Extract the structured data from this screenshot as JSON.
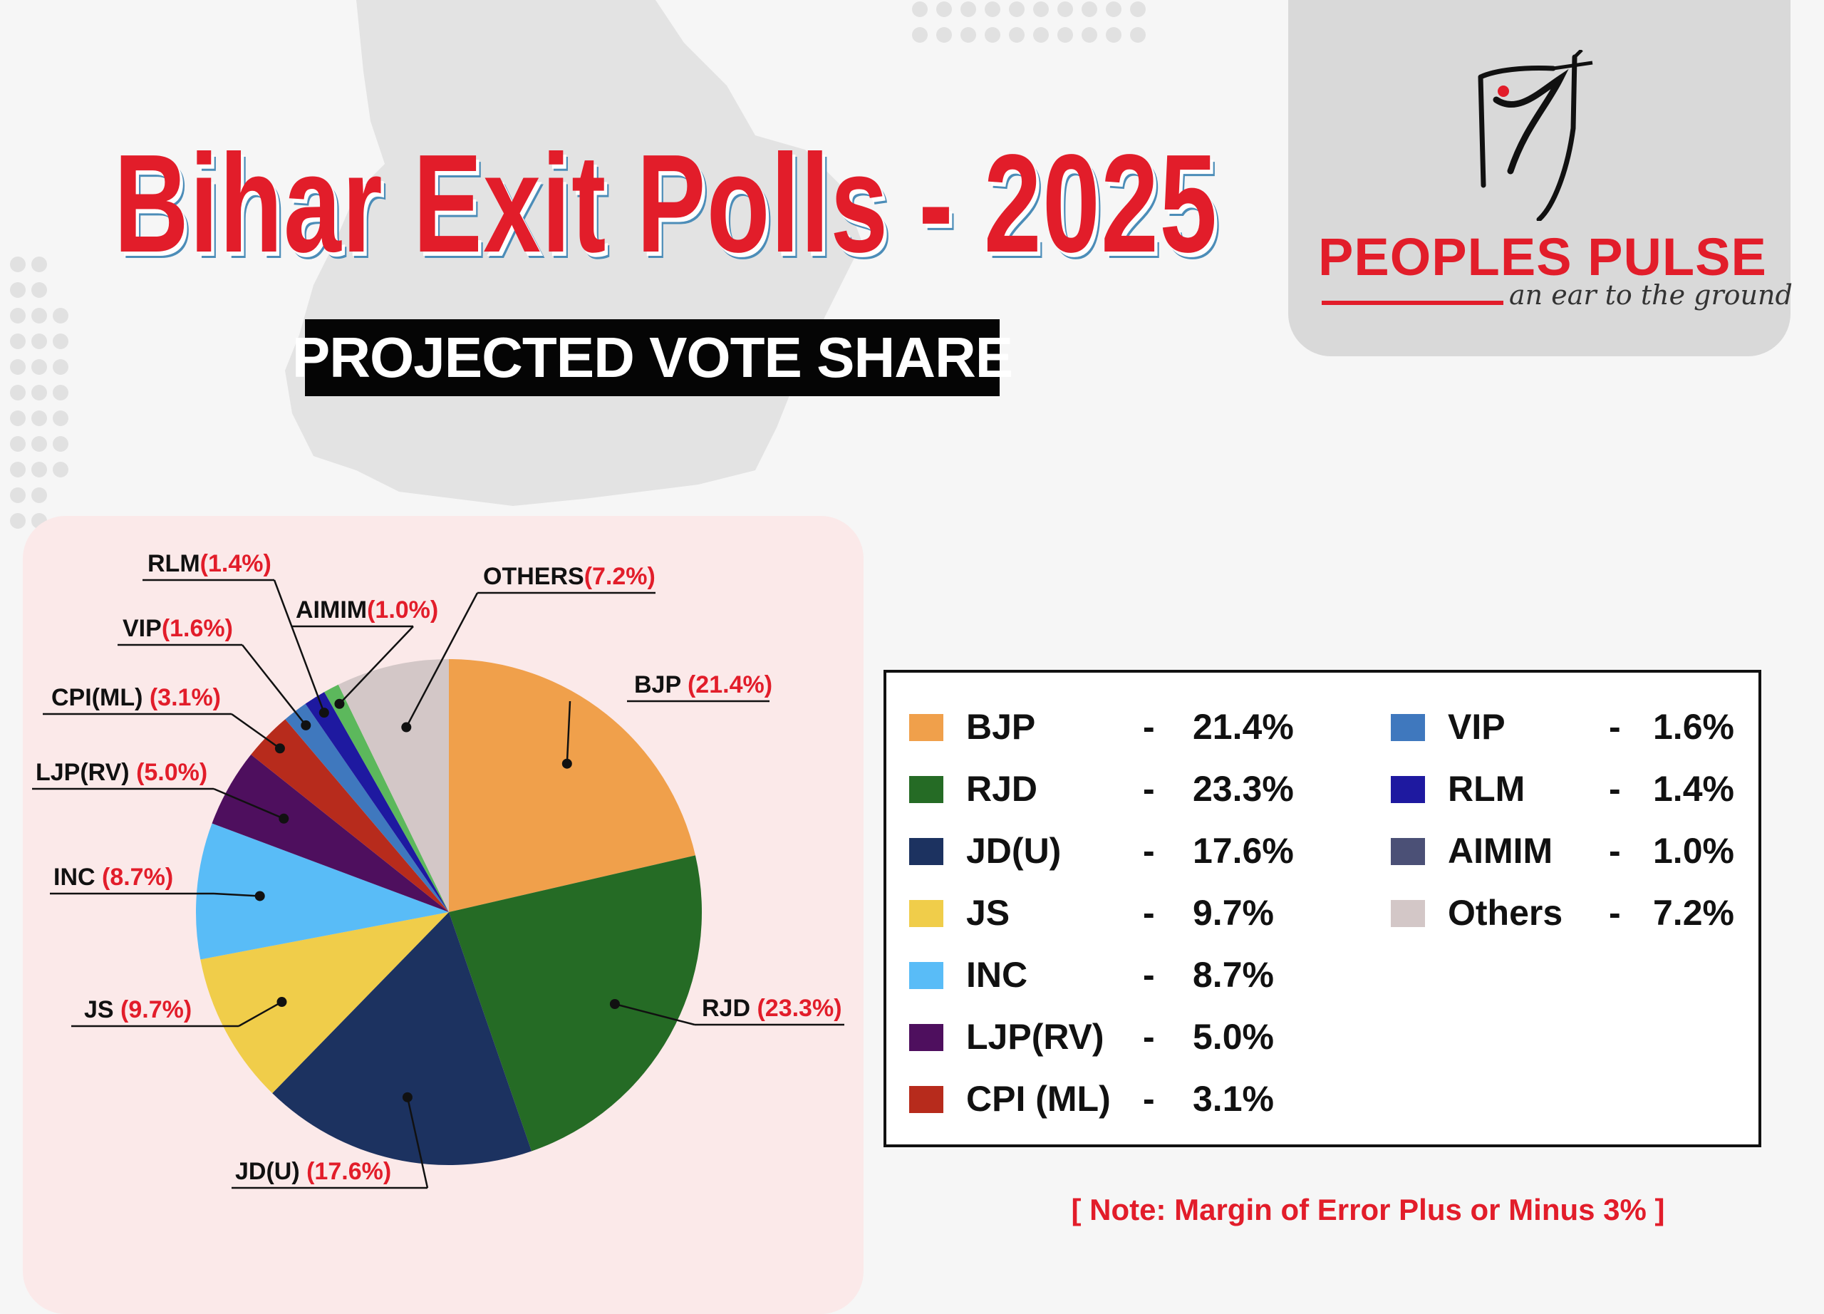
{
  "title": "Bihar Exit Polls - 2025",
  "subtitle": "PROJECTED VOTE SHARE",
  "brand": {
    "name": "PEOPLES PULSE",
    "tagline": "an ear to the ground"
  },
  "note": "[ Note: Margin of Error Plus or Minus 3% ]",
  "chart_data": {
    "type": "pie",
    "unit": "%",
    "slices": [
      {
        "name": "BJP",
        "label": "BJP",
        "value_label": "(21.4%)",
        "value": 21.4,
        "color": "#f0a04b"
      },
      {
        "name": "RJD",
        "label": "RJD",
        "value_label": "(23.3%)",
        "value": 23.3,
        "color": "#256b25"
      },
      {
        "name": "JD(U)",
        "label": "JD(U)",
        "value_label": "(17.6%)",
        "value": 17.6,
        "color": "#1c3260"
      },
      {
        "name": "JS",
        "label": "JS",
        "value_label": "(9.7%)",
        "value": 9.7,
        "color": "#f0cd4a"
      },
      {
        "name": "INC",
        "label": "INC",
        "value_label": "(8.7%)",
        "value": 8.7,
        "color": "#59bcf7"
      },
      {
        "name": "LJP(RV)",
        "label": "LJP(RV)",
        "value_label": "(5.0%)",
        "value": 5.0,
        "color": "#4e0f5e"
      },
      {
        "name": "CPI (ML)",
        "label": "CPI(ML)",
        "value_label": "(3.1%)",
        "value": 3.1,
        "color": "#b72b1c"
      },
      {
        "name": "VIP",
        "label": "VIP",
        "value_label": "(1.6%)",
        "value": 1.6,
        "color": "#3f78be"
      },
      {
        "name": "RLM",
        "label": "RLM",
        "value_label": "(1.4%)",
        "value": 1.4,
        "color": "#1e19a0"
      },
      {
        "name": "AIMIM",
        "label": "AIMIM",
        "value_label": "(1.0%)",
        "value": 1.0,
        "color": "#5cb85c"
      },
      {
        "name": "Others",
        "label": "OTHERS",
        "value_label": "(7.2%)",
        "value": 7.2,
        "color": "#d3c7c7"
      }
    ]
  },
  "legend": [
    {
      "name": "BJP",
      "dash": "-",
      "value": "21.4%",
      "color": "#f0a04b"
    },
    {
      "name": "RJD",
      "dash": "-",
      "value": "23.3%",
      "color": "#256b25"
    },
    {
      "name": "JD(U)",
      "dash": "-",
      "value": "17.6%",
      "color": "#1c3260"
    },
    {
      "name": "JS",
      "dash": "-",
      "value": "9.7%",
      "color": "#f0cd4a"
    },
    {
      "name": "INC",
      "dash": "-",
      "value": "8.7%",
      "color": "#59bcf7"
    },
    {
      "name": "LJP(RV)",
      "dash": "-",
      "value": "5.0%",
      "color": "#4e0f5e"
    },
    {
      "name": "CPI (ML)",
      "dash": "-",
      "value": "3.1%",
      "color": "#b72b1c"
    },
    {
      "name": "VIP",
      "dash": "-",
      "value": "1.6%",
      "color": "#3f78be"
    },
    {
      "name": "RLM",
      "dash": "-",
      "value": "1.4%",
      "color": "#1e19a0"
    },
    {
      "name": "AIMIM",
      "dash": "-",
      "value": "1.0%",
      "color": "#4b5076"
    },
    {
      "name": "Others",
      "dash": "-",
      "value": "7.2%",
      "color": "#d3c7c7"
    }
  ],
  "colors": {
    "accent_red": "#e21d2a",
    "panel_bg": "#fbe9e9"
  }
}
